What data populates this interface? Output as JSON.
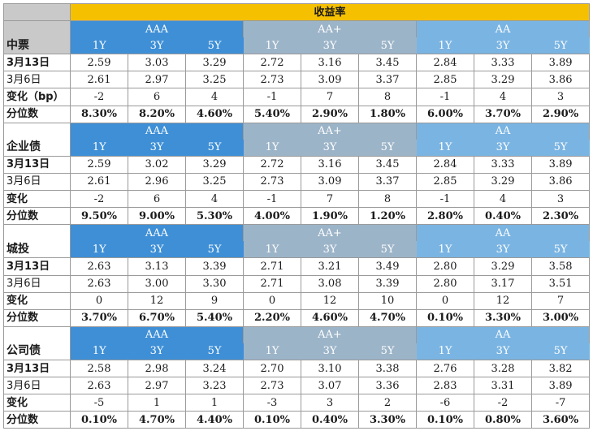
{
  "title": "收益率",
  "group_labels": [
    "AAA",
    "AA+",
    "AA"
  ],
  "tenors": [
    "1Y",
    "3Y",
    "5Y"
  ],
  "sections": [
    {
      "name": "中票",
      "rows": [
        {
          "label": "3月13日",
          "values": [
            "2.59",
            "3.03",
            "3.29",
            "2.72",
            "3.16",
            "3.45",
            "2.84",
            "3.33",
            "3.89"
          ]
        },
        {
          "label": "3月6日",
          "values": [
            "2.61",
            "2.97",
            "3.25",
            "2.73",
            "3.09",
            "3.37",
            "2.85",
            "3.29",
            "3.86"
          ]
        },
        {
          "label": "变化（bp）",
          "values": [
            "-2",
            "6",
            "4",
            "-1",
            "7",
            "8",
            "-1",
            "4",
            "3"
          ]
        },
        {
          "label": "分位数",
          "values": [
            "8.30%",
            "8.20%",
            "4.60%",
            "5.40%",
            "2.90%",
            "1.80%",
            "6.00%",
            "3.70%",
            "2.90%"
          ]
        }
      ]
    },
    {
      "name": "企业债",
      "rows": [
        {
          "label": "3月13日",
          "values": [
            "2.59",
            "3.02",
            "3.29",
            "2.72",
            "3.16",
            "3.45",
            "2.84",
            "3.33",
            "3.89"
          ]
        },
        {
          "label": "3月6日",
          "values": [
            "2.61",
            "2.96",
            "3.25",
            "2.73",
            "3.09",
            "3.37",
            "2.85",
            "3.29",
            "3.86"
          ]
        },
        {
          "label": "变化",
          "values": [
            "-2",
            "6",
            "4",
            "-1",
            "7",
            "8",
            "-1",
            "4",
            "3"
          ]
        },
        {
          "label": "分位数",
          "values": [
            "9.50%",
            "9.00%",
            "5.30%",
            "4.00%",
            "1.90%",
            "1.20%",
            "2.80%",
            "0.40%",
            "2.30%"
          ]
        }
      ]
    },
    {
      "name": "城投",
      "rows": [
        {
          "label": "3月13日",
          "values": [
            "2.63",
            "3.13",
            "3.39",
            "2.71",
            "3.21",
            "3.49",
            "2.80",
            "3.29",
            "3.58"
          ]
        },
        {
          "label": "3月6日",
          "values": [
            "2.63",
            "3.00",
            "3.30",
            "2.71",
            "3.08",
            "3.39",
            "2.80",
            "3.17",
            "3.51"
          ]
        },
        {
          "label": "变化",
          "values": [
            "0",
            "12",
            "9",
            "0",
            "12",
            "10",
            "0",
            "12",
            "7"
          ]
        },
        {
          "label": "分位数",
          "values": [
            "3.70%",
            "6.70%",
            "5.40%",
            "2.20%",
            "4.60%",
            "4.70%",
            "0.10%",
            "3.30%",
            "3.00%"
          ]
        }
      ]
    },
    {
      "name": "公司债",
      "rows": [
        {
          "label": "3月13日",
          "values": [
            "2.58",
            "2.98",
            "3.24",
            "2.70",
            "3.10",
            "3.38",
            "2.76",
            "3.28",
            "3.82"
          ]
        },
        {
          "label": "3月6日",
          "values": [
            "2.63",
            "2.97",
            "3.23",
            "2.73",
            "3.07",
            "3.36",
            "2.83",
            "3.31",
            "3.89"
          ]
        },
        {
          "label": "变化",
          "values": [
            "-5",
            "1",
            "1",
            "-3",
            "3",
            "2",
            "-6",
            "-2",
            "-7"
          ]
        },
        {
          "label": "分位数",
          "values": [
            "0.10%",
            "4.70%",
            "4.40%",
            "0.10%",
            "0.40%",
            "3.30%",
            "0.10%",
            "0.80%",
            "3.60%"
          ]
        }
      ]
    }
  ],
  "colors": {
    "title_bg": "#f5c000",
    "aaa_bg": "#3e8fd6",
    "aa_plus_bg": "#9cb4c8",
    "aa_bg": "#7ab4e2"
  }
}
